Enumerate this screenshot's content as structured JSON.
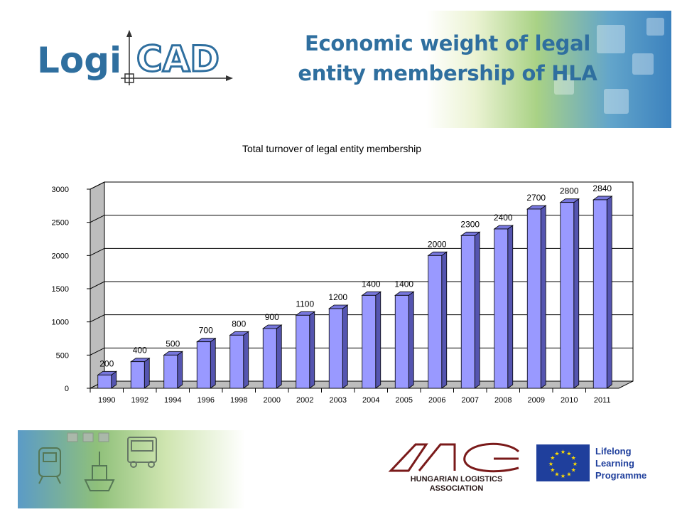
{
  "header": {
    "logo_text_left": "Logi",
    "logo_text_right": "CAD",
    "title_line1": "Economic weight of legal",
    "title_line2": "entity membership of HLA"
  },
  "colors": {
    "title": "#2f6f9f",
    "bar_front": "#9999ff",
    "bar_side": "#5555b0",
    "bar_top": "#7777dd",
    "logo_blue": "#2f6f9f"
  },
  "chart_data": {
    "type": "bar",
    "title": "Total turnover of legal entity membership",
    "categories": [
      "1990",
      "1992",
      "1994",
      "1996",
      "1998",
      "2000",
      "2002",
      "2003",
      "2004",
      "2005",
      "2006",
      "2007",
      "2008",
      "2009",
      "2010",
      "2011"
    ],
    "values": [
      200,
      400,
      500,
      700,
      800,
      900,
      1100,
      1200,
      1400,
      1400,
      2000,
      2300,
      2400,
      2700,
      2800,
      2840
    ],
    "data_labels": [
      "200",
      "400",
      "500",
      "700",
      "800",
      "900",
      "1100",
      "1200",
      "1400",
      "1400",
      "2000",
      "2300",
      "2400",
      "2700",
      "2800",
      "2840"
    ],
    "y_ticks": [
      "0",
      "500",
      "1000",
      "1500",
      "2000",
      "2500",
      "3000"
    ],
    "ylim": [
      0,
      3000
    ],
    "xlabel": "",
    "ylabel": "",
    "grid": true,
    "legend": false,
    "style": "3d-bar"
  },
  "footer": {
    "hla_line1": "HUNGARIAN LOGISTICS",
    "hla_line2": "ASSOCIATION",
    "llp_line1": "Lifelong",
    "llp_line2": "Learning",
    "llp_line3": "Programme"
  }
}
